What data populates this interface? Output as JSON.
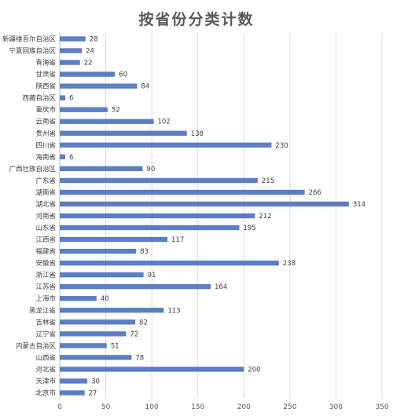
{
  "chart_data": {
    "type": "bar",
    "orientation": "horizontal",
    "title": "按省份分类计数",
    "categories": [
      "新疆维吾尔自治区",
      "宁夏回族自治区",
      "青海省",
      "甘肃省",
      "陕西省",
      "西藏自治区",
      "重庆市",
      "云南省",
      "贵州省",
      "四川省",
      "海南省",
      "广西壮族自治区",
      "广东省",
      "湖南省",
      "湖北省",
      "河南省",
      "山东省",
      "江西省",
      "福建省",
      "安徽省",
      "浙江省",
      "江苏省",
      "上海市",
      "黑龙江省",
      "吉林省",
      "辽宁省",
      "内蒙古自治区",
      "山西省",
      "河北省",
      "天津市",
      "北京市"
    ],
    "values": [
      28,
      24,
      22,
      60,
      84,
      6,
      52,
      102,
      138,
      230,
      6,
      90,
      215,
      266,
      314,
      212,
      195,
      117,
      83,
      238,
      91,
      164,
      40,
      113,
      82,
      72,
      51,
      78,
      200,
      30,
      27
    ],
    "xlim": [
      0,
      350
    ],
    "xticks": [
      "0",
      "50",
      "100",
      "150",
      "200",
      "250",
      "300",
      "350"
    ],
    "grid": true,
    "bar_color": "#5B7EC4",
    "legend": "none"
  }
}
